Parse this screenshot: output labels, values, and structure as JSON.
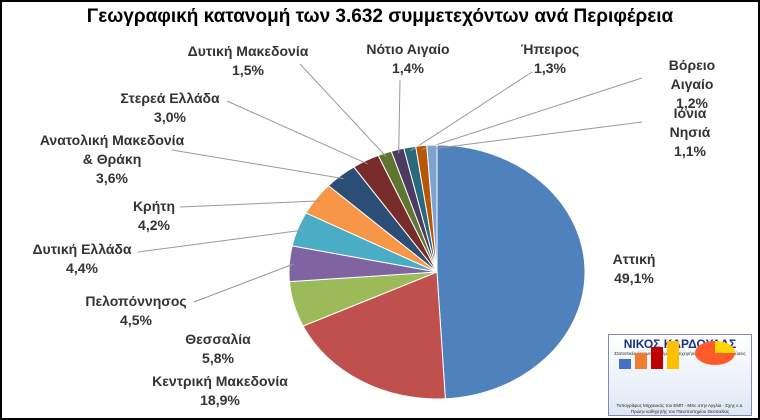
{
  "chart_data": {
    "type": "pie",
    "title": "Γεωγραφική κατανομή των 3.632 συμμετεχόντων ανά Περιφέρεια",
    "categories": [
      "Αττική",
      "Κεντρική Μακεδονία",
      "Θεσσαλία",
      "Πελοπόννησος",
      "Δυτική Ελλάδα",
      "Κρήτη",
      "Ανατολική Μακεδονία\n& Θράκη",
      "Στερεά Ελλάδα",
      "Δυτική Μακεδονία",
      "Νότιο Αιγαίο",
      "Ήπειρος",
      "Βόρειο Αιγαίο",
      "Ιόνια Νησιά"
    ],
    "values": [
      49.1,
      18.9,
      5.8,
      4.5,
      4.4,
      4.2,
      3.6,
      3.0,
      1.5,
      1.4,
      1.3,
      1.2,
      1.1
    ],
    "value_labels": [
      "49,1%",
      "18,9%",
      "5,8%",
      "4,5%",
      "4,4%",
      "4,2%",
      "3,6%",
      "3,0%",
      "1,5%",
      "1,4%",
      "1,3%",
      "1,2%",
      "1,1%"
    ],
    "colors": [
      "#4f81bd",
      "#c0504d",
      "#9bbb59",
      "#8064a2",
      "#4bacc6",
      "#f79646",
      "#2c4d75",
      "#772c2a",
      "#5f7530",
      "#4d3b62",
      "#276a7c",
      "#b65708",
      "#7fa3d0"
    ]
  },
  "logo": {
    "title": "ΝΙΚΟΣ ΚΑΡΔΟΥΛΑΣ",
    "subtitle": "Στατιστικές έρευνες σε θέματα επιχειρήσεων - Πολιτικές Αναλύσεις",
    "lines": [
      "Τοπογράφος Μηχανικός του ΕΜΠ - MSc στην Αγγλία - Σχης ε.α.",
      "Πρώην καθηγητής του Πανεπιστημίου Θεσσαλίας"
    ]
  }
}
